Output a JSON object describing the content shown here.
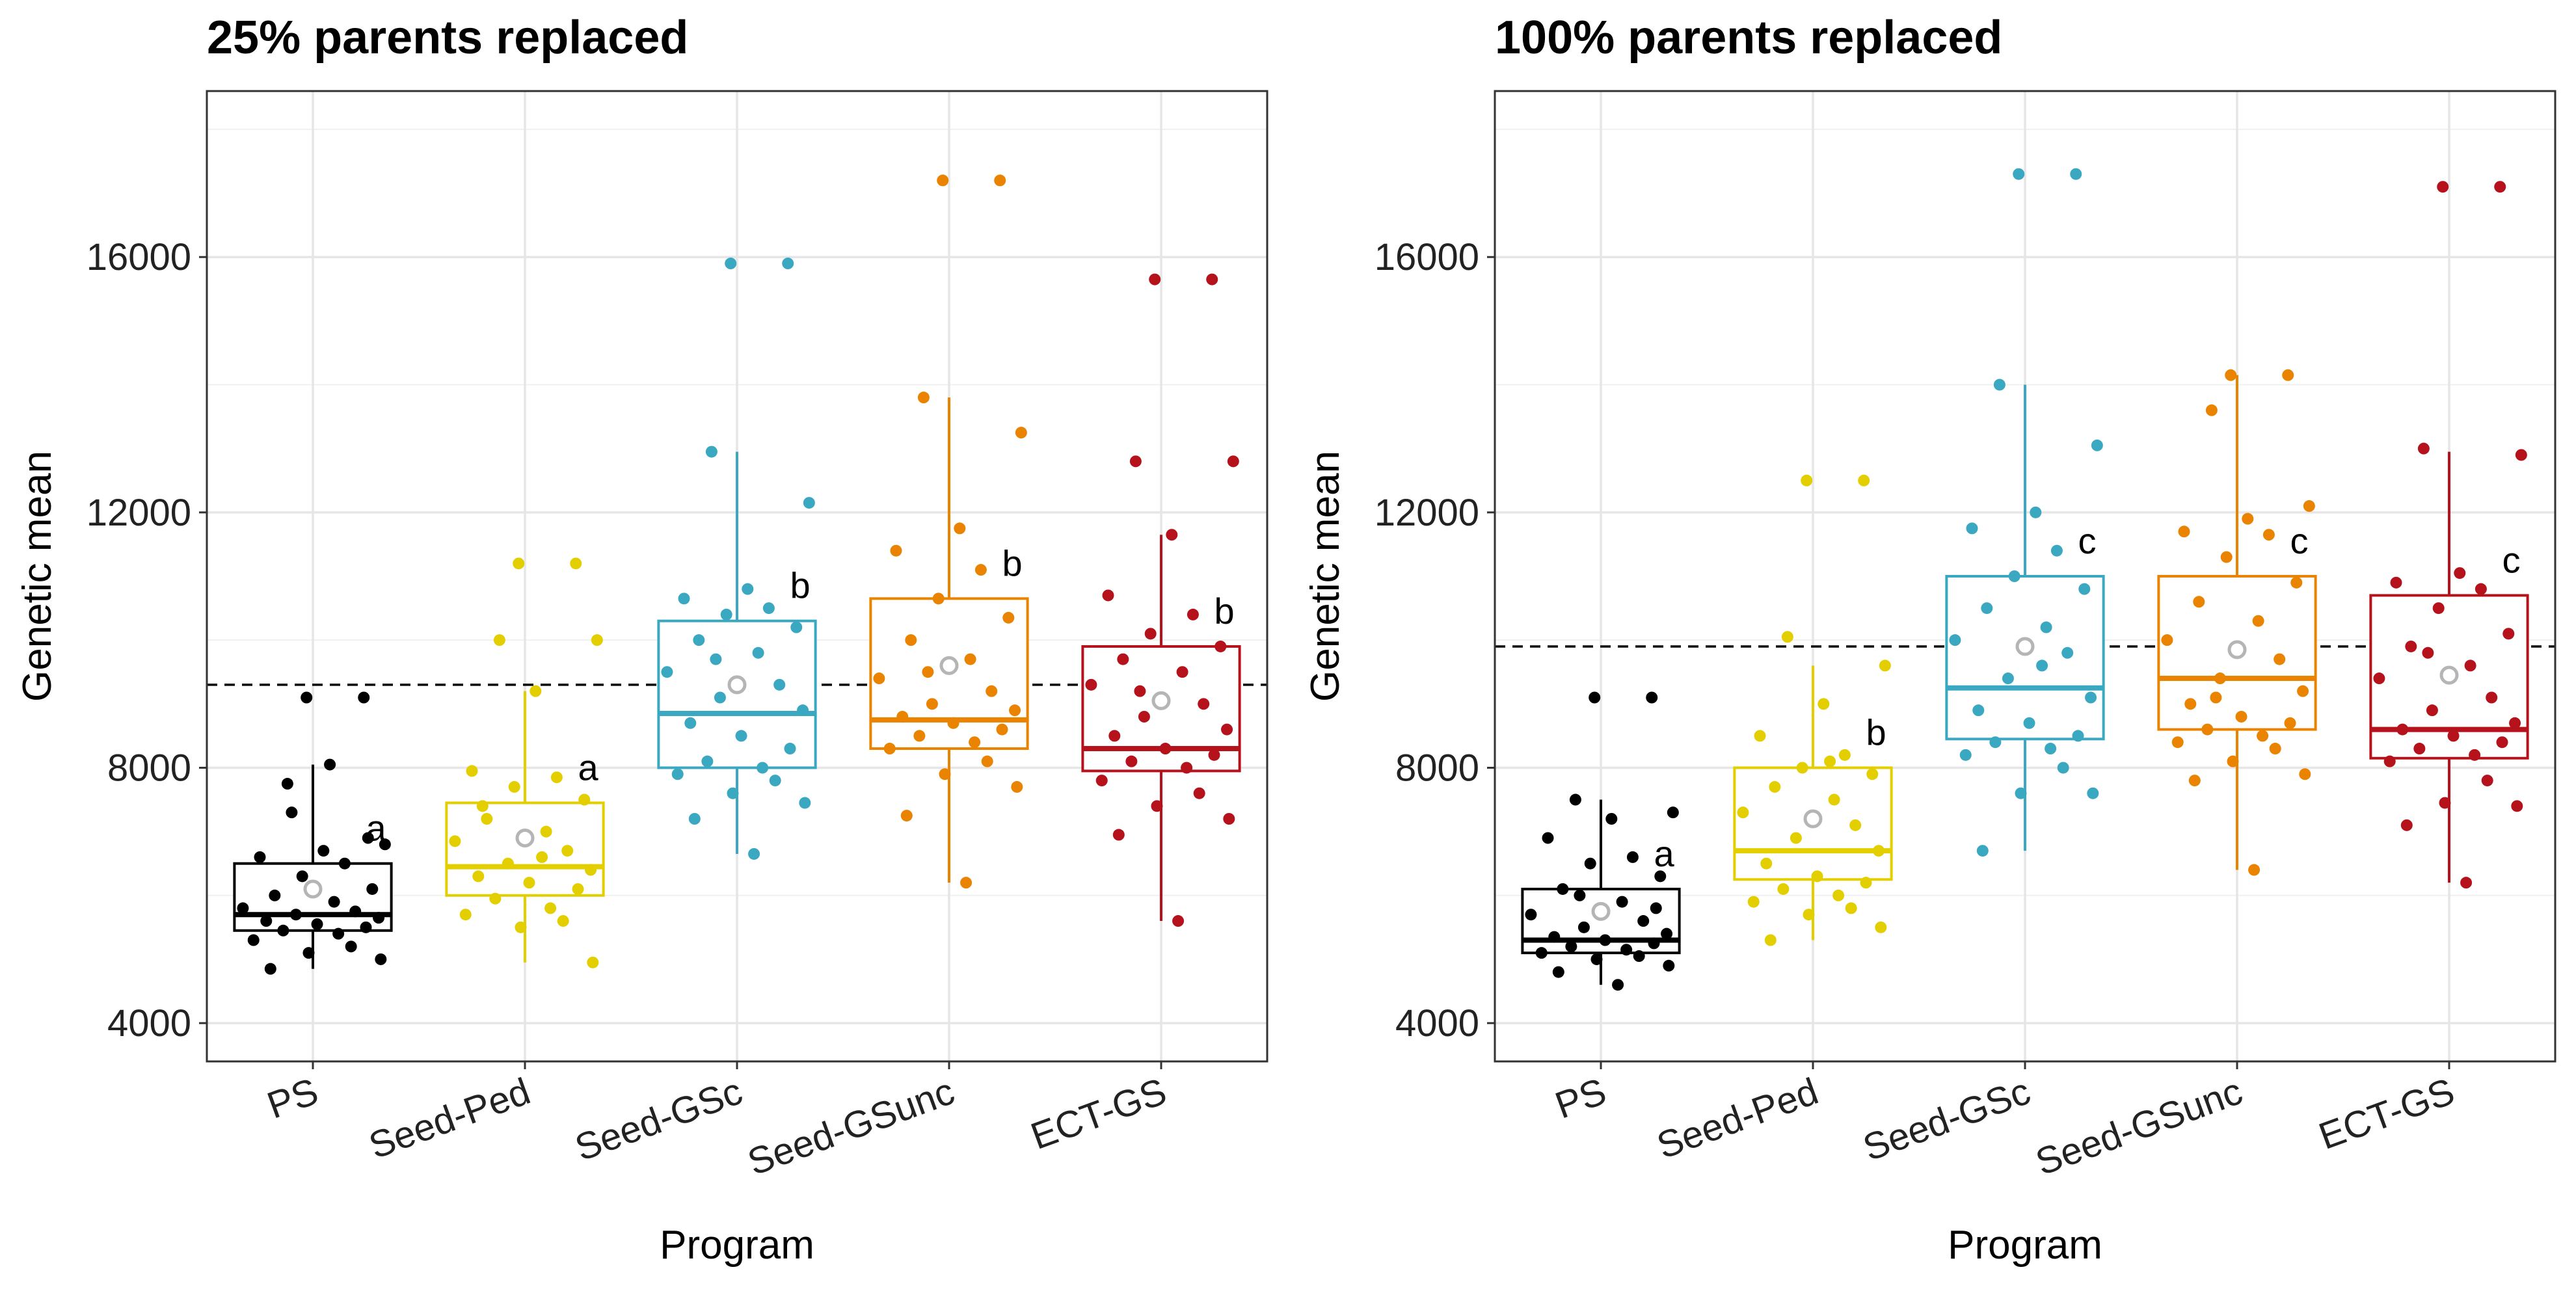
{
  "chart_data": [
    {
      "type": "box",
      "title": "25% parents replaced",
      "xlabel": "Program",
      "ylabel": "Genetic mean",
      "ylim": [
        3400,
        18600
      ],
      "yticks": [
        4000,
        8000,
        12000,
        16000
      ],
      "reference_line": 9300,
      "categories": [
        "PS",
        "Seed-Ped",
        "Seed-GSc",
        "Seed-GSunc",
        "ECT-GS"
      ],
      "colors": [
        "#000000",
        "#e3cf00",
        "#3aa8c1",
        "#e98300",
        "#b5121b"
      ],
      "boxes": [
        {
          "q1": 5450,
          "median": 5700,
          "q3": 6500,
          "whisker_low": 4850,
          "whisker_high": 8050,
          "mean": 6100,
          "letter": "a"
        },
        {
          "q1": 6000,
          "median": 6450,
          "q3": 7450,
          "whisker_low": 4950,
          "whisker_high": 9200,
          "mean": 6900,
          "letter": "a"
        },
        {
          "q1": 8000,
          "median": 8850,
          "q3": 10300,
          "whisker_low": 6650,
          "whisker_high": 12950,
          "mean": 9300,
          "letter": "b"
        },
        {
          "q1": 8300,
          "median": 8750,
          "q3": 10650,
          "whisker_low": 6200,
          "whisker_high": 13800,
          "mean": 9600,
          "letter": "b"
        },
        {
          "q1": 7950,
          "median": 8300,
          "q3": 9900,
          "whisker_low": 5600,
          "whisker_high": 11650,
          "mean": 9050,
          "letter": "b"
        }
      ],
      "points": [
        [
          9100,
          9100,
          7750,
          6800,
          6700,
          6600,
          6500,
          6300,
          6100,
          6000,
          5900,
          5800,
          5750,
          5700,
          5650,
          5600,
          5550,
          5500,
          5450,
          5400,
          5300,
          5200,
          5100,
          5000,
          4850,
          8050,
          7300,
          6900
        ],
        [
          11200,
          11200,
          10000,
          10000,
          9200,
          7950,
          7850,
          7700,
          7500,
          7200,
          7000,
          6850,
          6700,
          6500,
          6400,
          6300,
          6200,
          6100,
          5950,
          5800,
          5700,
          5600,
          5500,
          4950,
          7400,
          6600
        ],
        [
          15900,
          15900,
          12950,
          12150,
          10800,
          10650,
          10500,
          10400,
          10200,
          10000,
          9800,
          9500,
          9300,
          9100,
          8900,
          8700,
          8500,
          8300,
          8100,
          8000,
          7900,
          7800,
          7600,
          7450,
          7200,
          6650,
          9700
        ],
        [
          17200,
          17200,
          13800,
          13250,
          11750,
          11400,
          11100,
          10650,
          10350,
          10000,
          9700,
          9400,
          9200,
          9000,
          8900,
          8800,
          8700,
          8600,
          8500,
          8400,
          8300,
          8100,
          7900,
          7700,
          7250,
          6200,
          9500
        ],
        [
          15650,
          15650,
          12800,
          12800,
          11650,
          10700,
          10400,
          10100,
          9900,
          9700,
          9500,
          9300,
          9000,
          8800,
          8600,
          8500,
          8300,
          8200,
          8100,
          8000,
          7800,
          7600,
          7400,
          7200,
          6950,
          5600,
          9200
        ]
      ]
    },
    {
      "type": "box",
      "title": "100% parents replaced",
      "xlabel": "Program",
      "ylabel": "Genetic mean",
      "ylim": [
        3400,
        18600
      ],
      "yticks": [
        4000,
        8000,
        12000,
        16000
      ],
      "reference_line": 9900,
      "categories": [
        "PS",
        "Seed-Ped",
        "Seed-GSc",
        "Seed-GSunc",
        "ECT-GS"
      ],
      "colors": [
        "#000000",
        "#e3cf00",
        "#3aa8c1",
        "#e98300",
        "#b5121b"
      ],
      "boxes": [
        {
          "q1": 5100,
          "median": 5300,
          "q3": 6100,
          "whisker_low": 4600,
          "whisker_high": 7500,
          "mean": 5750,
          "letter": "a"
        },
        {
          "q1": 6250,
          "median": 6700,
          "q3": 8000,
          "whisker_low": 5300,
          "whisker_high": 9600,
          "mean": 7200,
          "letter": "b"
        },
        {
          "q1": 8450,
          "median": 9250,
          "q3": 11000,
          "whisker_low": 6700,
          "whisker_high": 14000,
          "mean": 9900,
          "letter": "c"
        },
        {
          "q1": 8600,
          "median": 9400,
          "q3": 11000,
          "whisker_low": 6400,
          "whisker_high": 14150,
          "mean": 9850,
          "letter": "c"
        },
        {
          "q1": 8150,
          "median": 8600,
          "q3": 10700,
          "whisker_low": 6200,
          "whisker_high": 12950,
          "mean": 9450,
          "letter": "c"
        }
      ],
      "points": [
        [
          9100,
          9100,
          7500,
          7300,
          7200,
          6900,
          6600,
          6500,
          6300,
          6100,
          5900,
          5700,
          5600,
          5500,
          5400,
          5350,
          5300,
          5250,
          5200,
          5150,
          5100,
          5050,
          5000,
          4900,
          4800,
          4600,
          6000,
          5800
        ],
        [
          12500,
          12500,
          10050,
          9600,
          9000,
          8500,
          8200,
          8000,
          7900,
          7700,
          7500,
          7300,
          7100,
          6900,
          6700,
          6500,
          6300,
          6200,
          6100,
          6000,
          5900,
          5800,
          5700,
          5500,
          5300,
          8100
        ],
        [
          17300,
          17300,
          14000,
          13050,
          12000,
          11750,
          11400,
          11000,
          10800,
          10500,
          10200,
          10000,
          9800,
          9400,
          9100,
          8900,
          8700,
          8500,
          8400,
          8300,
          8200,
          8000,
          7600,
          7600,
          6700,
          9600
        ],
        [
          14150,
          14150,
          13600,
          12100,
          11900,
          11700,
          11650,
          11300,
          10900,
          10600,
          10300,
          10000,
          9700,
          9400,
          9200,
          9000,
          8800,
          8700,
          8600,
          8500,
          8400,
          8300,
          8100,
          7900,
          7800,
          6400,
          9100
        ],
        [
          17100,
          17100,
          13000,
          12900,
          11050,
          10900,
          10800,
          10500,
          10100,
          9900,
          9600,
          9400,
          9100,
          8900,
          8700,
          8600,
          8500,
          8400,
          8300,
          8200,
          8100,
          7800,
          7450,
          7400,
          7100,
          6200,
          9800
        ]
      ]
    }
  ]
}
